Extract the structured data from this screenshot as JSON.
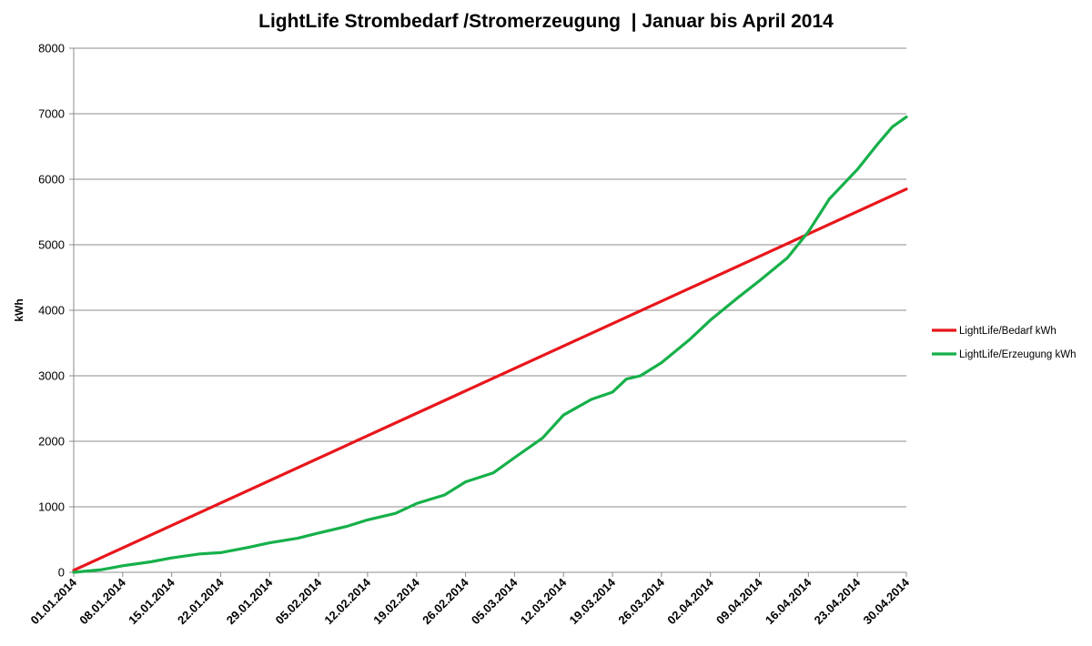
{
  "chart_data": {
    "type": "line",
    "title": "LightLife Strombedarf /Stromerzeugung  | Januar bis April 2014",
    "xlabel": "",
    "ylabel": "kWh",
    "ylim": [
      0,
      8000
    ],
    "yticks": [
      0,
      1000,
      2000,
      3000,
      4000,
      5000,
      6000,
      7000,
      8000
    ],
    "xlim": [
      "01.01.2014",
      "30.04.2014"
    ],
    "xticks": [
      "01.01.2014",
      "08.01.2014",
      "15.01.2014",
      "22.01.2014",
      "29.01.2014",
      "05.02.2014",
      "12.02.2014",
      "19.02.2014",
      "26.02.2014",
      "05.03.2014",
      "12.03.2014",
      "19.03.2014",
      "26.03.2014",
      "02.04.2014",
      "09.04.2014",
      "16.04.2014",
      "23.04.2014",
      "30.04.2014"
    ],
    "grid": true,
    "legend_position": "right",
    "series": [
      {
        "name": "LightLife/Bedarf kWh",
        "color": "#e8161b",
        "x": [
          "01.01.2014",
          "30.04.2014"
        ],
        "y": [
          30,
          5850
        ]
      },
      {
        "name": "LightLife/Erzeugung kWh",
        "color": "#16b04a",
        "x": [
          "01.01.2014",
          "05.01.2014",
          "08.01.2014",
          "12.01.2014",
          "15.01.2014",
          "19.01.2014",
          "22.01.2014",
          "26.01.2014",
          "29.01.2014",
          "02.02.2014",
          "05.02.2014",
          "09.02.2014",
          "12.02.2014",
          "16.02.2014",
          "19.02.2014",
          "23.02.2014",
          "26.02.2014",
          "02.03.2014",
          "05.03.2014",
          "09.03.2014",
          "12.03.2014",
          "16.03.2014",
          "19.03.2014",
          "21.03.2014",
          "23.03.2014",
          "26.03.2014",
          "30.03.2014",
          "02.04.2014",
          "06.04.2014",
          "09.04.2014",
          "13.04.2014",
          "16.04.2014",
          "19.04.2014",
          "23.04.2014",
          "26.04.2014",
          "28.04.2014",
          "30.04.2014"
        ],
        "y": [
          0,
          40,
          100,
          160,
          220,
          280,
          300,
          380,
          450,
          520,
          600,
          700,
          800,
          900,
          1050,
          1180,
          1380,
          1520,
          1750,
          2050,
          2400,
          2640,
          2750,
          2950,
          3000,
          3200,
          3550,
          3850,
          4200,
          4450,
          4800,
          5200,
          5700,
          6150,
          6550,
          6800,
          6950
        ]
      }
    ]
  }
}
